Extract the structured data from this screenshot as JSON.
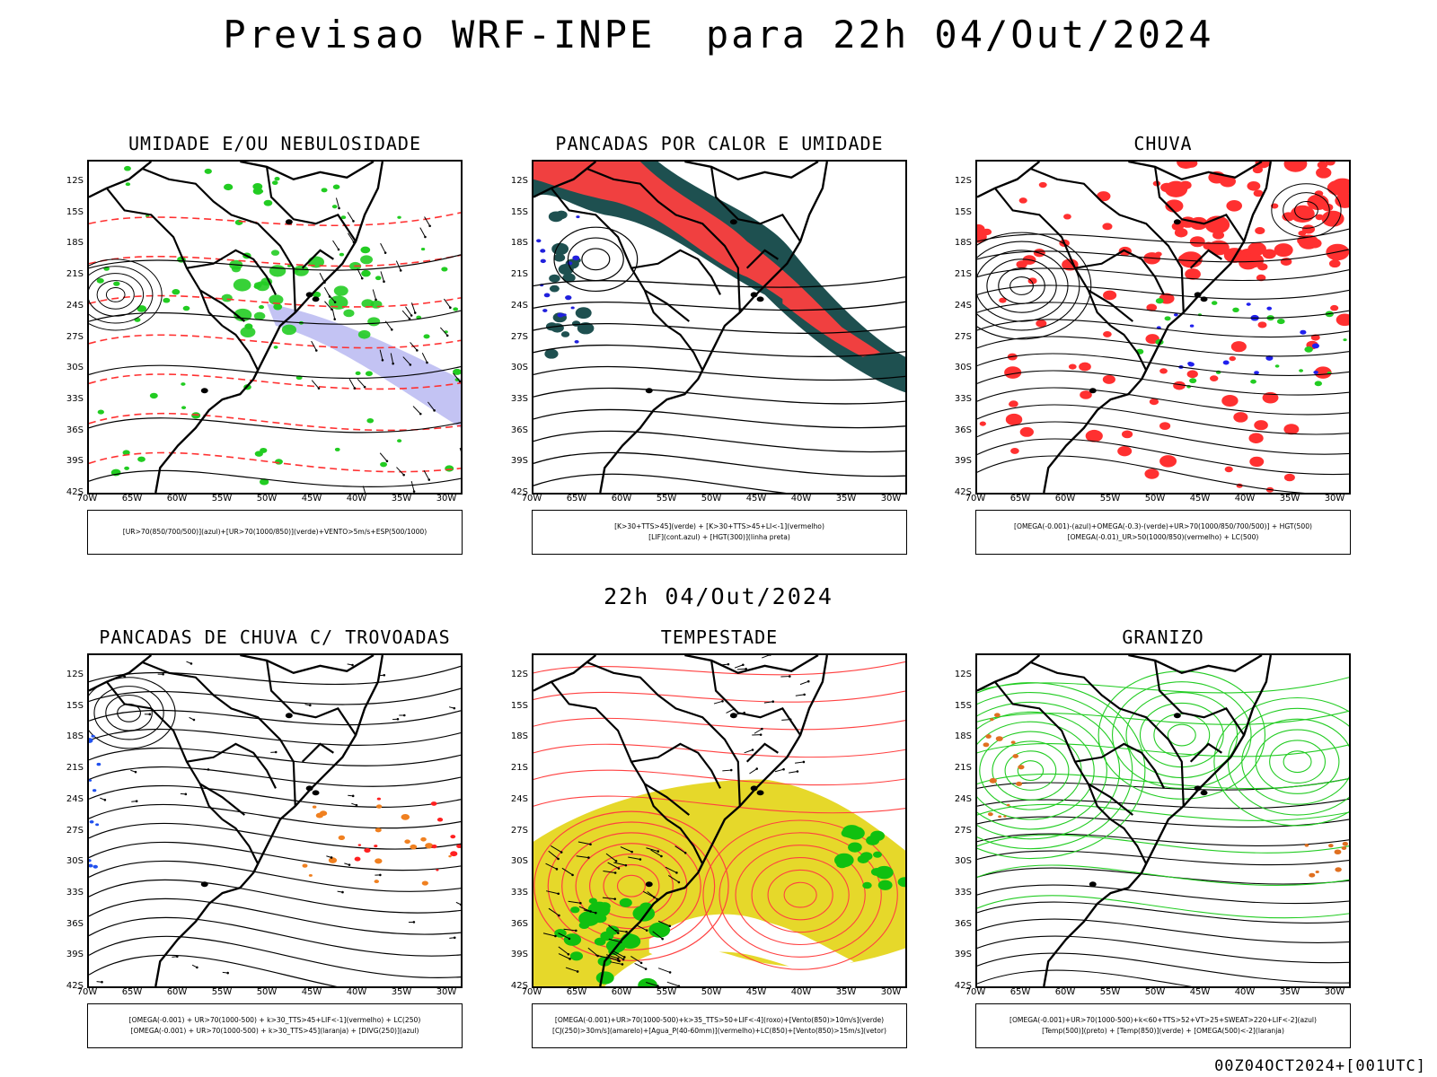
{
  "title": "Previsao WRF-INPE  para 22h 04/Out/2024",
  "subtitle": "22h 04/Out/2024",
  "footer": "00Z04OCT2024+[001UTC]",
  "lat_labels": [
    "12S",
    "15S",
    "18S",
    "21S",
    "24S",
    "27S",
    "30S",
    "33S",
    "36S",
    "39S",
    "42S"
  ],
  "lon_labels": [
    "70W",
    "65W",
    "60W",
    "55W",
    "50W",
    "45W",
    "40W",
    "35W",
    "30W"
  ],
  "panels": [
    {
      "title": "UMIDADE E/OU NEBULOSIDADE",
      "legend": [
        "[UR>70(850/700/500)](azul)+[UR>70(1000/850)](verde)+VENTO>5m/s+ESP(500/1000)"
      ],
      "colors": [
        "#b4b4f0",
        "#22cc22",
        "#ff3030",
        "#000000"
      ]
    },
    {
      "title": "PANCADAS POR CALOR E UMIDADE",
      "legend": [
        "[K>30+TTS>45](verde) + [K>30+TTS>45+LI<-1](vermelho)",
        "[LIF](cont.azul) + [HGT(300)](linha preta)"
      ],
      "colors": [
        "#1e5050",
        "#f04040",
        "#2020dd",
        "#000000"
      ]
    },
    {
      "title": "CHUVA",
      "legend": [
        "[OMEGA(-0.001)-(azul)+OMEGA(-0.3)-(verde)+UR>70(1000/850/700/500)] + HGT(500)",
        "[OMEGA(-0.01)_UR>50(1000/850)(vermelho) + LC(500)"
      ],
      "colors": [
        "#ff3030",
        "#22cc22",
        "#2020ee",
        "#000000"
      ]
    },
    {
      "title": "PANCADAS DE CHUVA C/ TROVOADAS",
      "legend": [
        "[OMEGA(-0.001) + UR>70(1000-500) + k>30_TTS>45+LIF<-1](vermelho) + LC(250)",
        "[OMEGA(-0.001) + UR>70(1000-500) + k>30_TTS>45](laranja) + [DIVG(250)](azul)"
      ],
      "colors": [
        "#ff2020",
        "#f08020",
        "#2050ee",
        "#000000"
      ]
    },
    {
      "title": "TEMPESTADE",
      "legend": [
        "[OMEGA(-0.001)+UR>70(1000-500)+k>35_TTS>50+LIF<-4](roxo)+[Vento(850)>10m/s](verde)",
        "[CJ(250)>30m/s](amarelo)+[Agua_P(40-60mm)](vermelho)+LC(850)+[Vento(850)>15m/s](vetor)"
      ],
      "colors": [
        "#e6d82a",
        "#ff4040",
        "#10c010",
        "#000000"
      ]
    },
    {
      "title": "GRANIZO",
      "legend": [
        "[OMEGA(-0.001)+UR>70(1000-500)+k<60+TTS>52+VT>25+SWEAT>220+LIF<-2](azul)",
        "[Temp(500)](preto) + [Temp(850)](verde) + [OMEGA(500)<-2](laranja)"
      ],
      "colors": [
        "#22cc22",
        "#000000",
        "#e07020",
        "#000000"
      ]
    }
  ]
}
